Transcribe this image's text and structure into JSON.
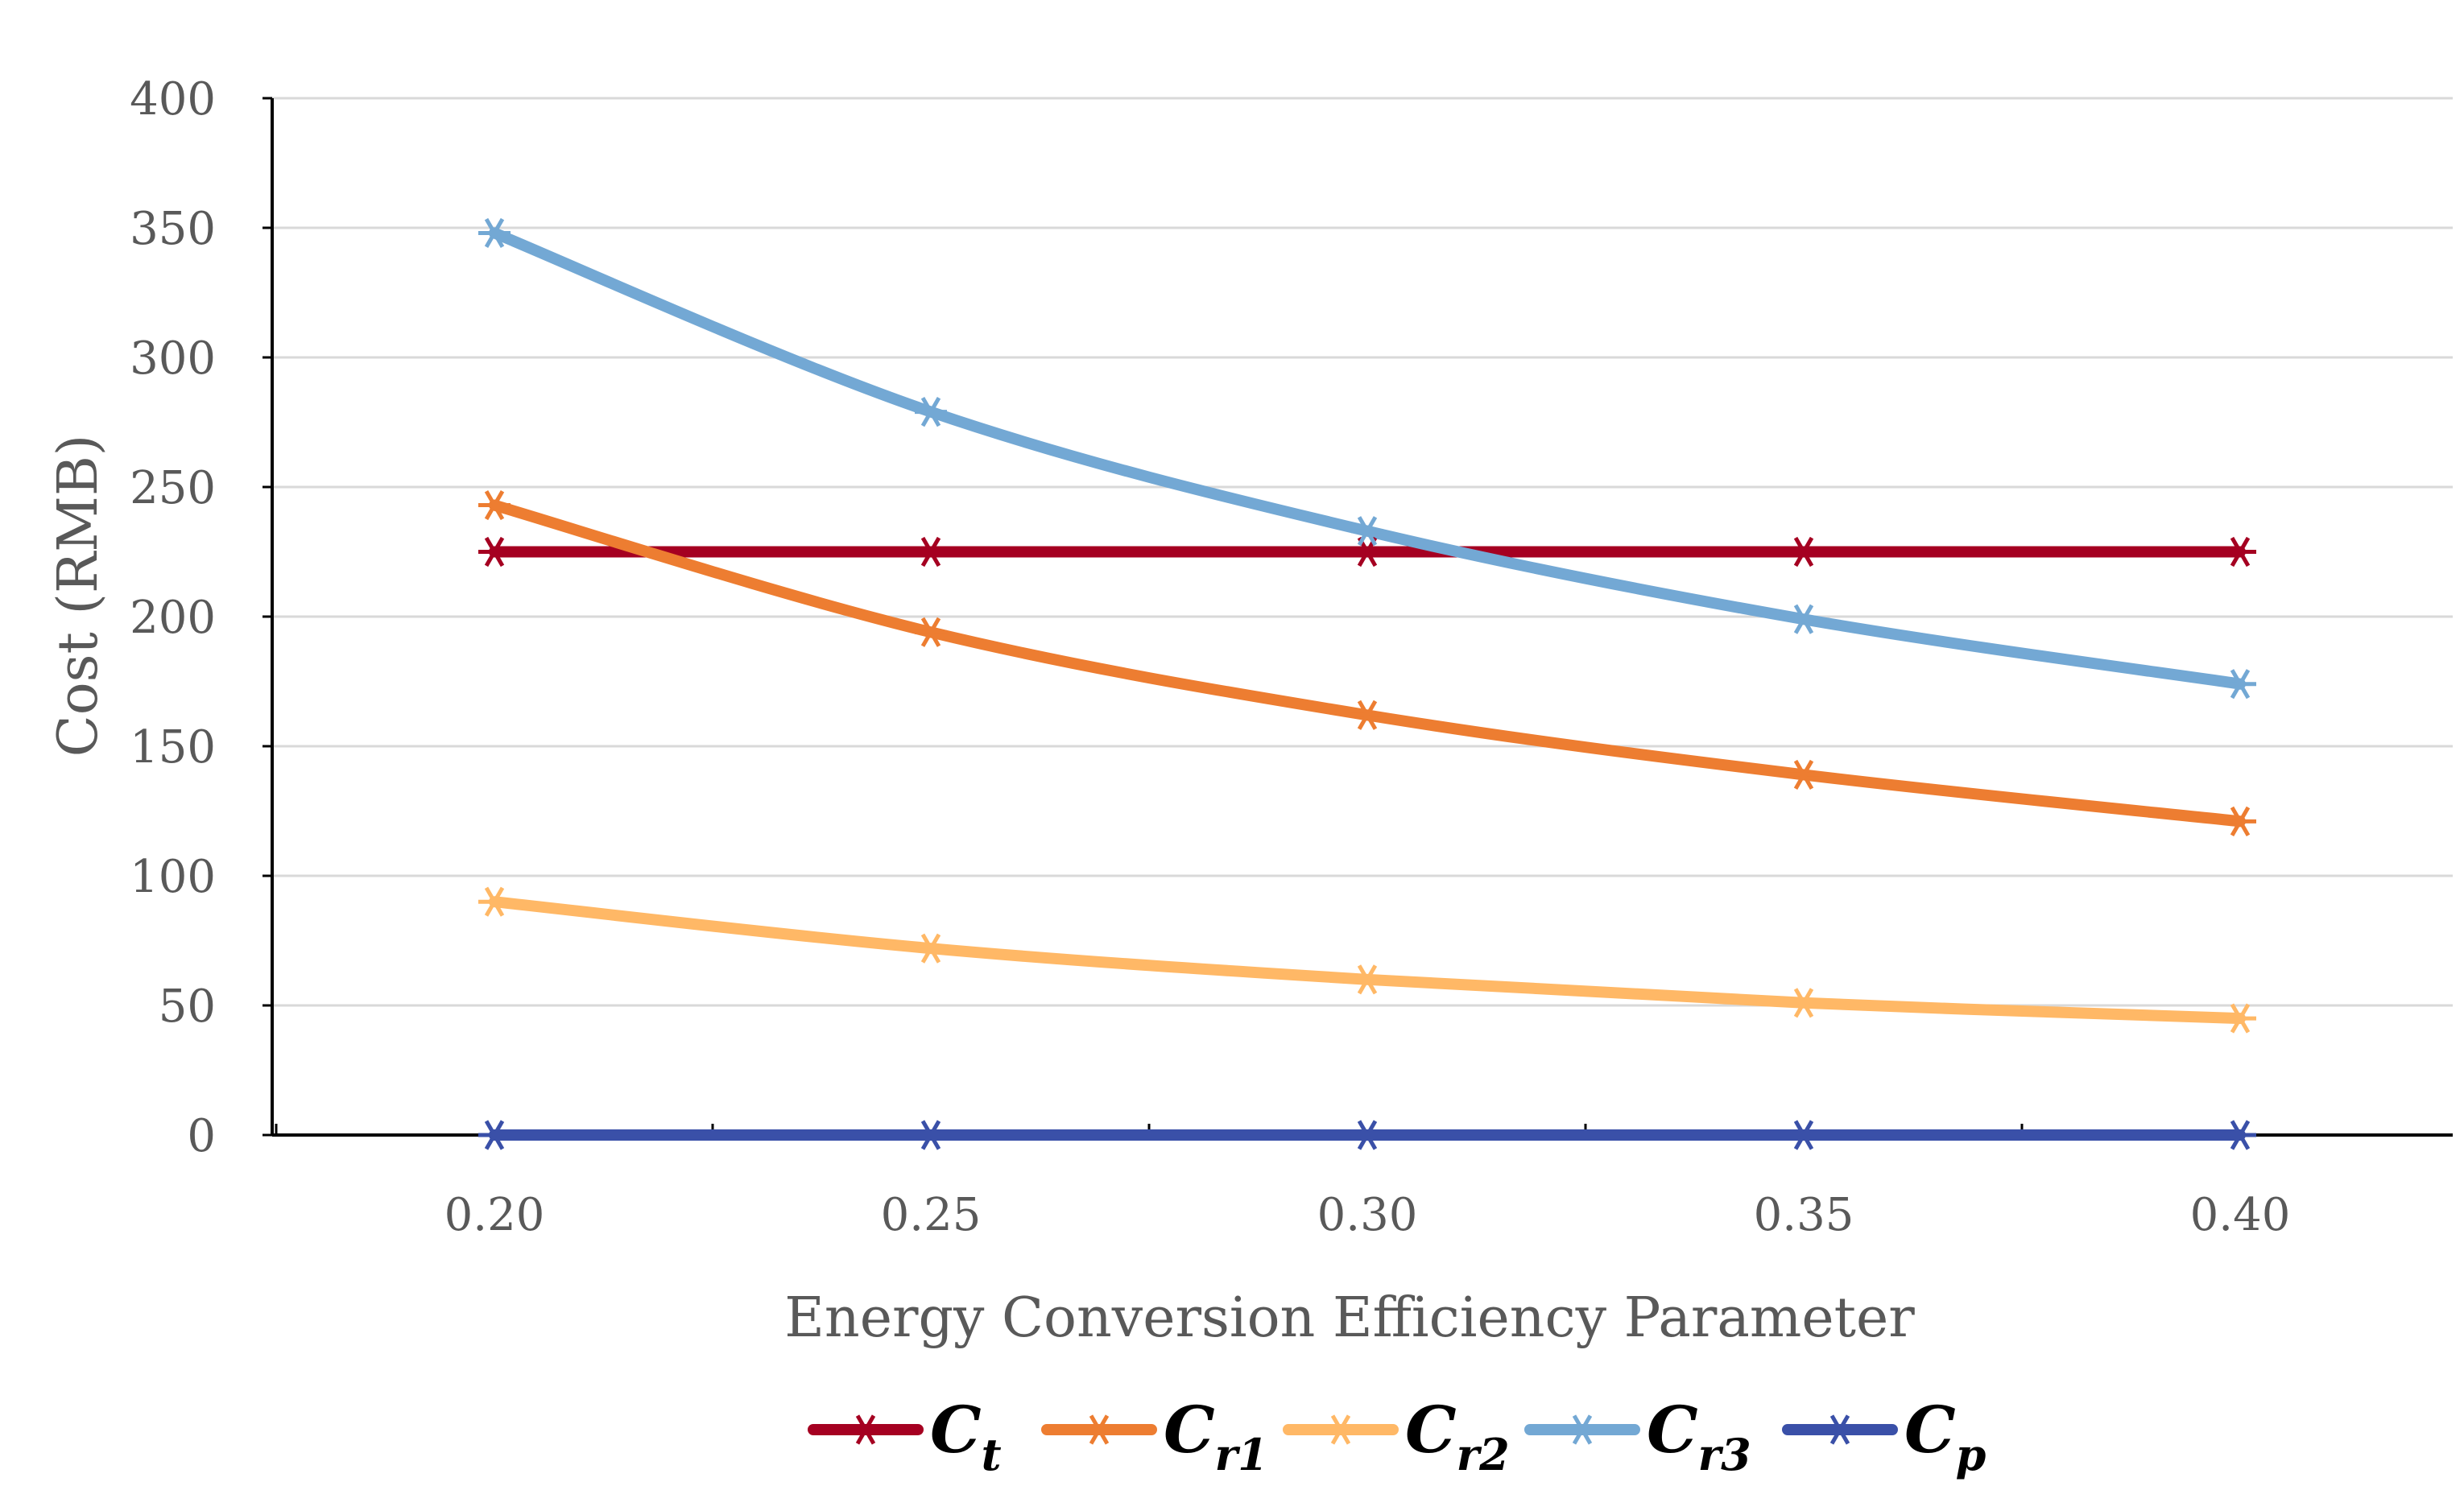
{
  "chart_data": {
    "type": "line",
    "title": "",
    "xlabel": "Energy Conversion Efficiency Parameter",
    "ylabel": "Cost (RMB)",
    "x": [
      0.2,
      0.25,
      0.3,
      0.35,
      0.4
    ],
    "x_tick_labels": [
      "0.20",
      "0.25",
      "0.30",
      "0.35",
      "0.40"
    ],
    "ylim": [
      0,
      400
    ],
    "y_ticks": [
      0,
      50,
      100,
      150,
      200,
      250,
      300,
      350,
      400
    ],
    "y_tick_labels": [
      "0",
      "50",
      "100",
      "150",
      "200",
      "250",
      "300",
      "350",
      "400"
    ],
    "grid": true,
    "legend_position": "bottom",
    "series": [
      {
        "name": "Ct",
        "base": "C",
        "sub": "t",
        "color": "#a50021",
        "values": [
          225,
          225,
          225,
          225,
          225
        ]
      },
      {
        "name": "Cr1",
        "base": "C",
        "sub": "r1",
        "color": "#ed7d31",
        "values": [
          243,
          194,
          162,
          139,
          121
        ]
      },
      {
        "name": "Cr2",
        "base": "C",
        "sub": "r2",
        "color": "#ffb866",
        "values": [
          90,
          72,
          60,
          51,
          45
        ]
      },
      {
        "name": "Cr3",
        "base": "C",
        "sub": "r3",
        "color": "#73a8d4",
        "values": [
          348,
          279,
          233,
          199,
          174
        ]
      },
      {
        "name": "Cp",
        "base": "C",
        "sub": "p",
        "color": "#3a50a8",
        "values": [
          0,
          0,
          0,
          0,
          0
        ]
      }
    ]
  }
}
